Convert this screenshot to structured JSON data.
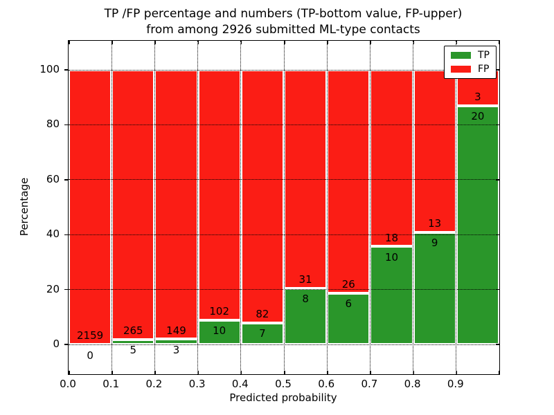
{
  "title": {
    "line1": "TP /FP percentage and numbers (TP-bottom value, FP-upper)",
    "line2": "from among 2926 submitted ML-type contacts"
  },
  "axes": {
    "xlabel": "Predicted probability",
    "ylabel": "Percentage",
    "x_tick_labels": [
      "0.0",
      "0.1",
      "0.2",
      "0.3",
      "0.4",
      "0.5",
      "0.6",
      "0.7",
      "0.8",
      "0.9"
    ],
    "y_tick_labels": [
      "0",
      "20",
      "40",
      "60",
      "80",
      "100"
    ],
    "y_tick_values": [
      0,
      20,
      40,
      60,
      80,
      100
    ]
  },
  "legend": {
    "position": "upper-right",
    "items": [
      {
        "label": "TP",
        "color": "#2a962a"
      },
      {
        "label": "FP",
        "color": "#fb1d15"
      }
    ]
  },
  "colors": {
    "tp": "#2a962a",
    "fp": "#fb1d15",
    "bar_edge": "#ffffff",
    "grid": "#000000",
    "text": "#000000"
  },
  "chart_data": {
    "type": "bar",
    "stacked": true,
    "orientation": "vertical",
    "title": "TP /FP percentage and numbers (TP-bottom value, FP-upper) from among 2926 submitted ML-type contacts",
    "xlabel": "Predicted probability",
    "ylabel": "Percentage",
    "total_contacts": 2926,
    "bin_edges": [
      0.0,
      0.1,
      0.2,
      0.3,
      0.4,
      0.5,
      0.6,
      0.7,
      0.8,
      0.9,
      1.0
    ],
    "categories": [
      "0.0-0.1",
      "0.1-0.2",
      "0.2-0.3",
      "0.3-0.4",
      "0.4-0.5",
      "0.5-0.6",
      "0.6-0.7",
      "0.7-0.8",
      "0.8-0.9",
      "0.9-1.0"
    ],
    "series": [
      {
        "name": "TP",
        "counts": [
          0,
          5,
          3,
          10,
          7,
          8,
          6,
          10,
          9,
          20
        ]
      },
      {
        "name": "FP",
        "counts": [
          2159,
          265,
          149,
          102,
          82,
          31,
          26,
          18,
          13,
          3
        ]
      }
    ],
    "tp_percent": [
      0.0,
      1.85,
      1.97,
      8.93,
      7.87,
      20.51,
      18.75,
      35.71,
      40.91,
      86.96
    ],
    "bar_total_percent": 100,
    "xlim": [
      0.0,
      1.0
    ],
    "ylim": [
      -10.8,
      110.6
    ],
    "grid": "dotted",
    "legend_position": "upper right"
  }
}
